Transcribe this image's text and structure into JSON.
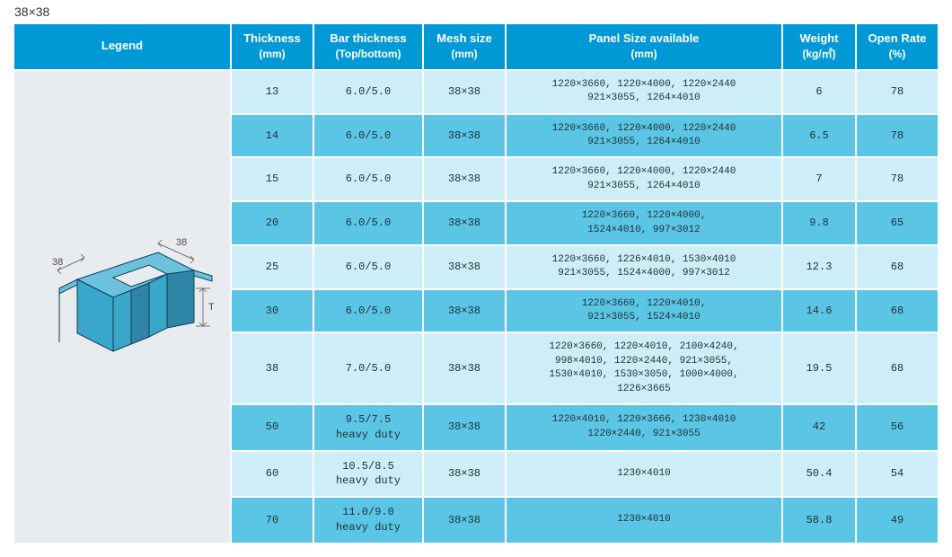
{
  "title": "38×38",
  "colors": {
    "header_bg": "#0099d6",
    "header_fg": "#ffffff",
    "row_odd_bg": "#cdeef8",
    "row_even_bg": "#5bc5e6",
    "legend_bg": "#e8ecef",
    "diagram_fill": "#3aa6c9",
    "diagram_edge": "#0d3e56",
    "dim_line": "#555555",
    "dim_text": "#4a4a4a"
  },
  "table": {
    "columns": [
      {
        "label": "Legend",
        "sub": ""
      },
      {
        "label": "Thickness",
        "sub": "(mm)"
      },
      {
        "label": "Bar thickness",
        "sub": "(Top/bottom)"
      },
      {
        "label": "Mesh size",
        "sub": "(mm)"
      },
      {
        "label": "Panel Size available",
        "sub": "(mm)"
      },
      {
        "label": "Weight",
        "sub": "(kg/㎡)"
      },
      {
        "label": "Open Rate",
        "sub": "(%)"
      }
    ],
    "rows": [
      {
        "thickness": "13",
        "bar": "6.0/5.0",
        "mesh": "38×38",
        "panel": "1220×3660, 1220×4000, 1220×2440\n921×3055, 1264×4010",
        "weight": "6",
        "open": "78"
      },
      {
        "thickness": "14",
        "bar": "6.0/5.0",
        "mesh": "38×38",
        "panel": "1220×3660, 1220×4000, 1220×2440\n921×3055, 1264×4010",
        "weight": "6.5",
        "open": "78"
      },
      {
        "thickness": "15",
        "bar": "6.0/5.0",
        "mesh": "38×38",
        "panel": "1220×3660, 1220×4000, 1220×2440\n921×3055, 1264×4010",
        "weight": "7",
        "open": "78"
      },
      {
        "thickness": "20",
        "bar": "6.0/5.0",
        "mesh": "38×38",
        "panel": "1220×3660, 1220×4000,\n1524×4010, 997×3012",
        "weight": "9.8",
        "open": "65"
      },
      {
        "thickness": "25",
        "bar": "6.0/5.0",
        "mesh": "38×38",
        "panel": "1220×3660, 1226×4010, 1530×4010\n921×3055, 1524×4000, 997×3012",
        "weight": "12.3",
        "open": "68"
      },
      {
        "thickness": "30",
        "bar": "6.0/5.0",
        "mesh": "38×38",
        "panel": "1220×3660, 1220×4010,\n921×3055, 1524×4010",
        "weight": "14.6",
        "open": "68"
      },
      {
        "thickness": "38",
        "bar": "7.0/5.0",
        "mesh": "38×38",
        "panel": "1220×3660, 1220×4010, 2100×4240,\n998×4010, 1220×2440, 921×3055,\n1530×4010, 1530×3050, 1000×4000,\n1226×3665",
        "weight": "19.5",
        "open": "68"
      },
      {
        "thickness": "50",
        "bar": "9.5/7.5\nheavy duty",
        "mesh": "38×38",
        "panel": "1220×4010, 1220×3666, 1230×4010\n1220×2440, 921×3055",
        "weight": "42",
        "open": "56"
      },
      {
        "thickness": "60",
        "bar": "10.5/8.5\nheavy duty",
        "mesh": "38×38",
        "panel": "1230×4010",
        "weight": "50.4",
        "open": "54"
      },
      {
        "thickness": "70",
        "bar": "11.0/9.0\nheavy duty",
        "mesh": "38×38",
        "panel": "1230×4010",
        "weight": "58.8",
        "open": "49"
      }
    ]
  },
  "diagram": {
    "labels": {
      "dim_a": "38",
      "dim_b": "38",
      "dim_t": "T"
    }
  }
}
